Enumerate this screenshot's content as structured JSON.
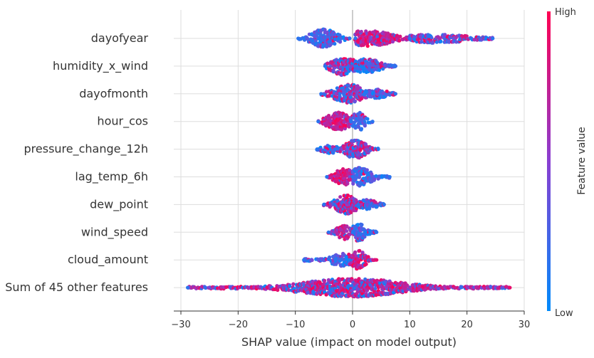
{
  "chart_data": {
    "type": "scatter",
    "subtype": "beeswarm",
    "title": "",
    "xlabel": "SHAP value (impact on model output)",
    "ylabel": "",
    "xlim": [
      -30,
      30
    ],
    "xticks": [
      -30,
      -20,
      -10,
      0,
      10,
      20,
      30
    ],
    "grid": true,
    "colorbar": {
      "label": "Feature value",
      "high_label": "High",
      "low_label": "Low",
      "colors": [
        "#008bfb",
        "#ff0052"
      ]
    },
    "features": [
      {
        "name": "dayofyear",
        "segments": [
          {
            "from": -9.5,
            "to": -0.5,
            "peak": -5,
            "spread": 2.0,
            "lean": 0.1,
            "thick": 1.0
          },
          {
            "from": 0.5,
            "to": 13,
            "peak": 2.5,
            "spread": 4.0,
            "lean": 0.85,
            "thick": 0.85
          },
          {
            "from": 10,
            "to": 24.5,
            "peak": 15,
            "spread": 5.0,
            "lean": 0.45,
            "thick": 0.5
          }
        ]
      },
      {
        "name": "humidity_x_wind",
        "segments": [
          {
            "from": -4.8,
            "to": 7.5,
            "peak": -1.5,
            "spread": 2.0,
            "lean": 0.55,
            "thick": 1.0
          },
          {
            "from": 0.5,
            "to": 7.5,
            "peak": 2.5,
            "spread": 2.0,
            "lean": 0.2,
            "thick": 0.8
          }
        ]
      },
      {
        "name": "dayofmonth",
        "segments": [
          {
            "from": -5.5,
            "to": 7.5,
            "peak": -0.5,
            "spread": 2.4,
            "lean": 0.55,
            "thick": 1.0
          },
          {
            "from": 2.0,
            "to": 7.5,
            "peak": 4.5,
            "spread": 1.6,
            "lean": 0.15,
            "thick": 0.5
          }
        ]
      },
      {
        "name": "hour_cos",
        "segments": [
          {
            "from": -6,
            "to": -0.3,
            "peak": -2.5,
            "spread": 1.8,
            "lean": 0.9,
            "thick": 1.0
          },
          {
            "from": -0.3,
            "to": 3.5,
            "peak": 1.0,
            "spread": 1.0,
            "lean": 0.1,
            "thick": 1.0
          }
        ]
      },
      {
        "name": "pressure_change_12h",
        "segments": [
          {
            "from": -6.2,
            "to": -2.5,
            "peak": -4,
            "spread": 1.2,
            "lean": 0.3,
            "thick": 0.45
          },
          {
            "from": -3,
            "to": 4.5,
            "peak": 0.5,
            "spread": 1.7,
            "lean": 0.5,
            "thick": 1.0
          }
        ]
      },
      {
        "name": "lag_temp_6h",
        "segments": [
          {
            "from": -4.5,
            "to": 0.2,
            "peak": -1.5,
            "spread": 1.5,
            "lean": 0.9,
            "thick": 0.9
          },
          {
            "from": 0,
            "to": 6.5,
            "peak": 1.0,
            "spread": 2.0,
            "lean": 0.12,
            "thick": 1.0
          }
        ]
      },
      {
        "name": "dew_point",
        "segments": [
          {
            "from": -5,
            "to": 5.5,
            "peak": -1,
            "spread": 1.8,
            "lean": 0.6,
            "thick": 1.0
          },
          {
            "from": 1,
            "to": 5.5,
            "peak": 2.5,
            "spread": 1.4,
            "lean": 0.15,
            "thick": 0.6
          }
        ]
      },
      {
        "name": "wind_speed",
        "segments": [
          {
            "from": -4.2,
            "to": 0.2,
            "peak": -1.5,
            "spread": 1.2,
            "lean": 0.85,
            "thick": 0.8
          },
          {
            "from": 0,
            "to": 4.2,
            "peak": 1.0,
            "spread": 1.1,
            "lean": 0.12,
            "thick": 1.0
          }
        ]
      },
      {
        "name": "cloud_amount",
        "segments": [
          {
            "from": -8.5,
            "to": -0.3,
            "peak": -1.5,
            "spread": 2.0,
            "lean": 0.06,
            "thick": 0.7
          },
          {
            "from": -0.5,
            "to": 4.2,
            "peak": 1.0,
            "spread": 1.2,
            "lean": 0.85,
            "thick": 1.0
          }
        ]
      },
      {
        "name": "Sum of 45 other features",
        "segments": [
          {
            "from": -28.8,
            "to": 27.5,
            "peak": 0,
            "spread": 8.0,
            "lean": 0.65,
            "thick": 1.0
          }
        ]
      }
    ]
  }
}
